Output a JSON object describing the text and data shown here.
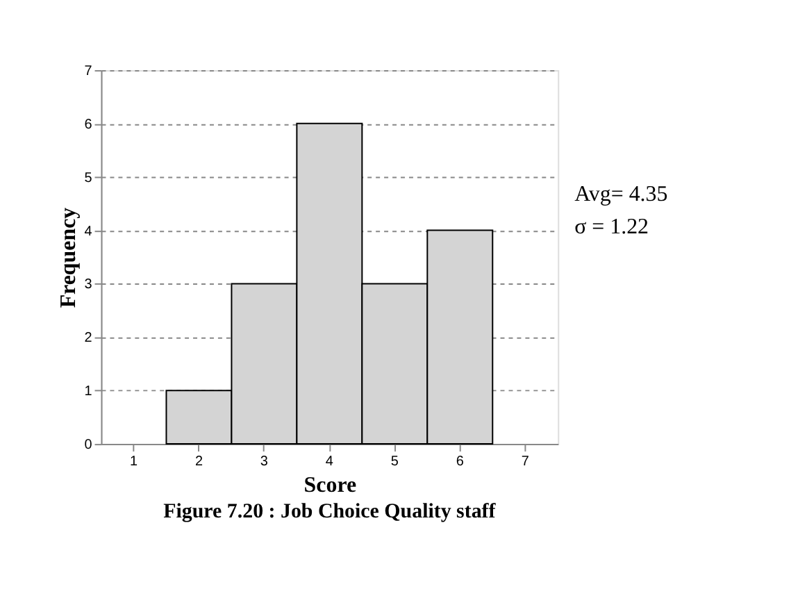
{
  "chart_data": {
    "type": "bar",
    "title": "Figure 7.20 : Job Choice Quality staff",
    "xlabel": "Score",
    "ylabel": "Frequency",
    "categories": [
      "1",
      "2",
      "3",
      "4",
      "5",
      "6",
      "7"
    ],
    "values": [
      0,
      1,
      3,
      6,
      3,
      4,
      0
    ],
    "color": "#d4d4d4",
    "ylim": [
      0,
      7
    ],
    "yticks": [
      0,
      1,
      2,
      3,
      4,
      5,
      6,
      7
    ],
    "grid": "y",
    "annotations": [
      "Avg= 4.35",
      "σ  = 1.22"
    ]
  }
}
